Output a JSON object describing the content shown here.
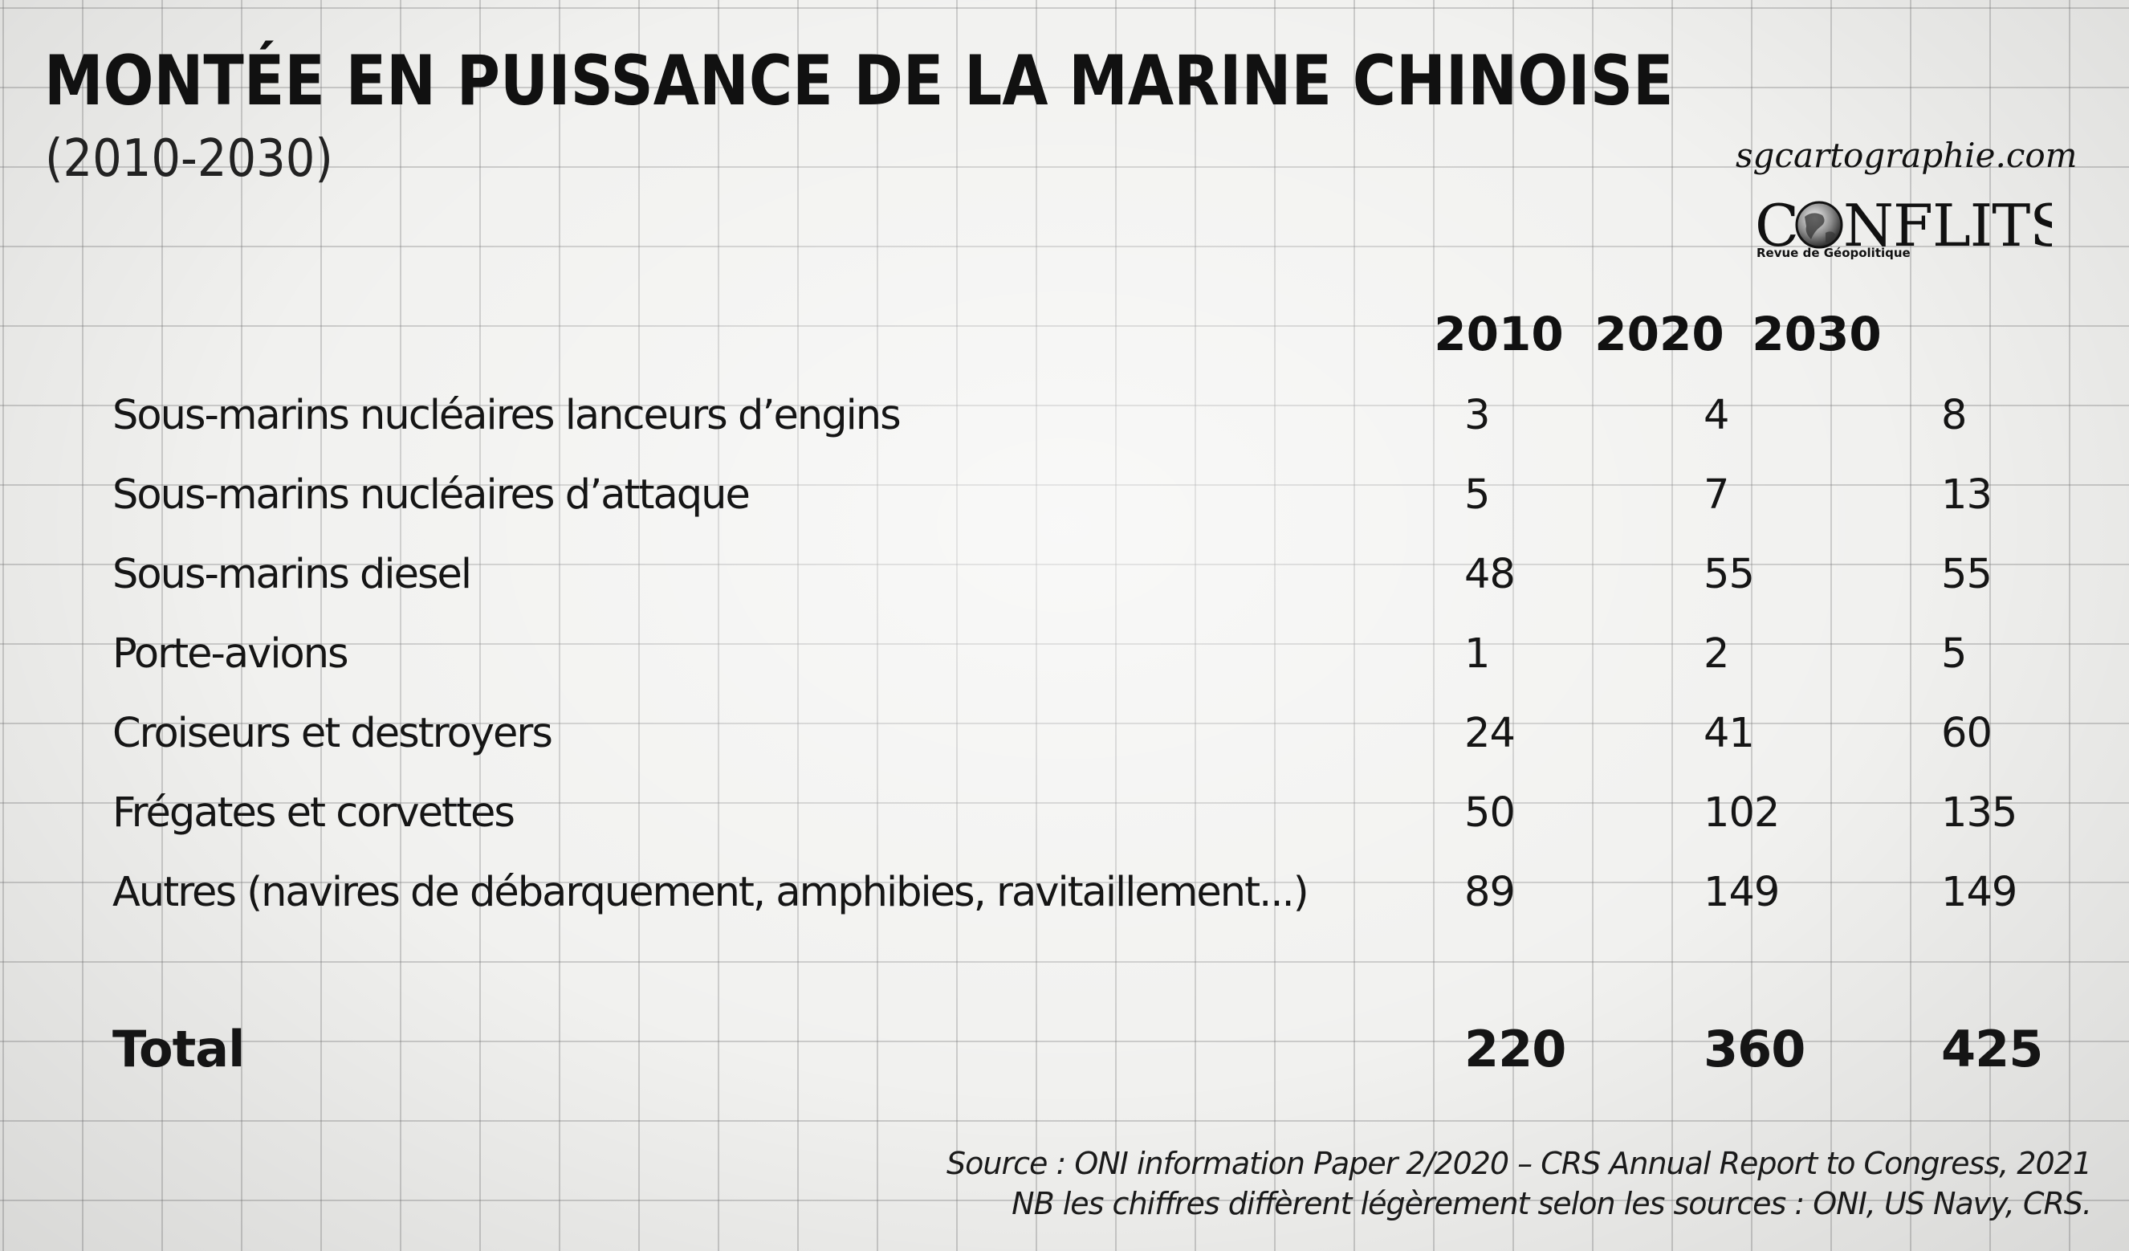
{
  "header": {
    "title": "MONTÉE EN PUISSANCE DE LA MARINE CHINOISE",
    "subtitle": "(2010-2030)"
  },
  "branding": {
    "site": "sgcartographie.com",
    "logo_text": "CONFLITS",
    "logo_tagline": "Revue de Géopolitique"
  },
  "chart_data": {
    "type": "table",
    "columns": [
      "2010",
      "2020",
      "2030"
    ],
    "rows": [
      {
        "label": "Sous-marins nucléaires lanceurs d’engins",
        "values": [
          "3",
          "4",
          "8"
        ]
      },
      {
        "label": "Sous-marins nucléaires d’attaque",
        "values": [
          "5",
          "7",
          "13"
        ]
      },
      {
        "label": "Sous-marins diesel",
        "values": [
          "48",
          "55",
          "55"
        ]
      },
      {
        "label": "Porte-avions",
        "values": [
          "1",
          "2",
          "5"
        ]
      },
      {
        "label": "Croiseurs et destroyers",
        "values": [
          "24",
          "41",
          "60"
        ]
      },
      {
        "label": "Frégates et corvettes",
        "values": [
          "50",
          "102",
          "135"
        ]
      },
      {
        "label": "Autres (navires de débarquement, amphibies, ravitaillement...)",
        "values": [
          "89",
          "149",
          "149"
        ]
      }
    ],
    "total": {
      "label": "Total",
      "values": [
        "220",
        "360",
        "425"
      ]
    }
  },
  "footer": {
    "source": "Source : ONI information Paper 2/2020 – CRS Annual Report to Congress, 2021",
    "note": "NB les chiffres diffèrent légèrement selon les sources : ONI, US Navy, CRS."
  },
  "colors": {
    "background": "#f1f1ef",
    "grid": "#8a8a8a",
    "text": "#151515"
  }
}
